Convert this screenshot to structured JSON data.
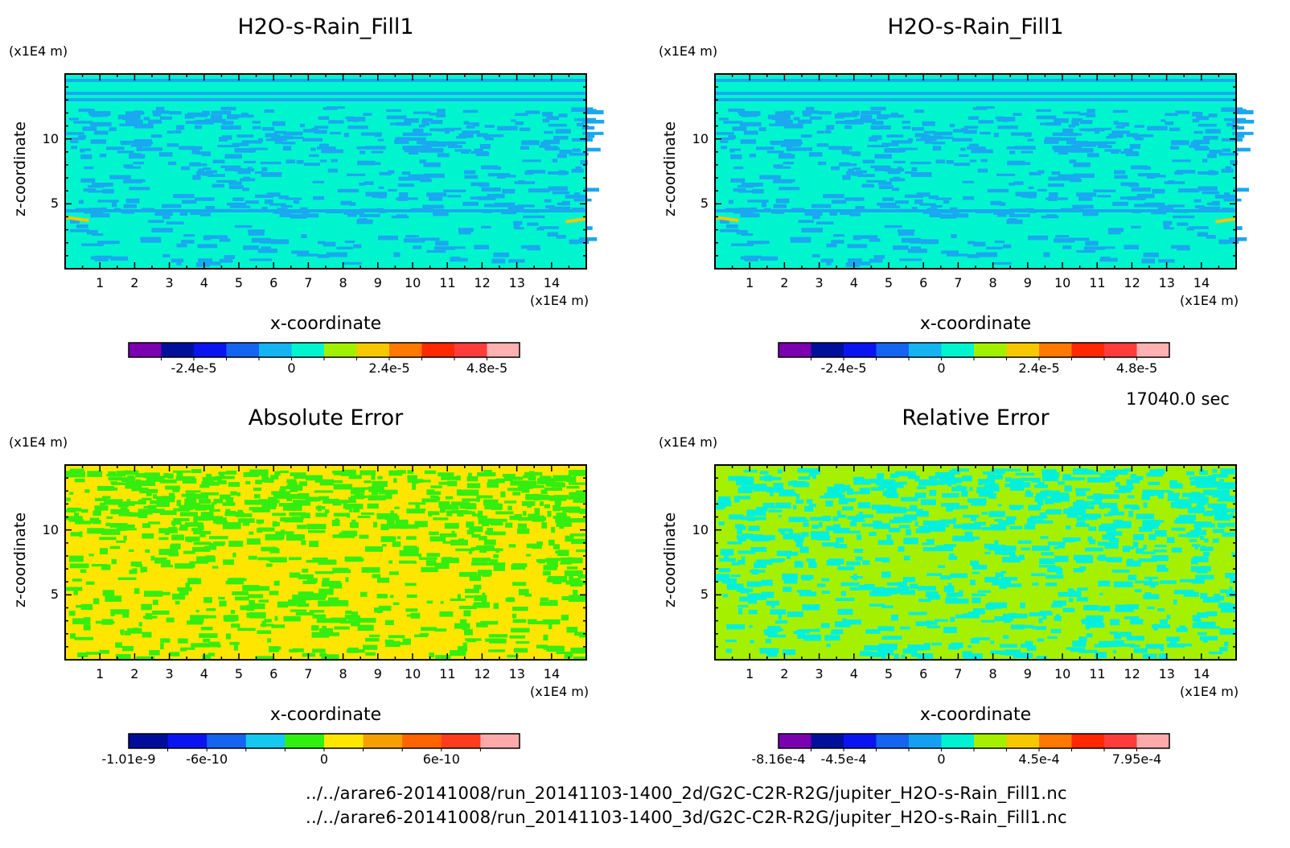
{
  "footer": {
    "path_2d": "../../arare6-20141008/run_20141103-1400_2d/G2C-C2R-R2G/jupiter_H2O-s-Rain_Fill1.nc",
    "path_3d": "../../arare6-20141008/run_20141103-1400_3d/G2C-C2R-R2G/jupiter_H2O-s-Rain_Fill1.nc"
  },
  "time_label": "17040.0 sec",
  "chart_data": [
    {
      "type": "heatmap",
      "title": "H2O-s-Rain_Fill1",
      "xlabel": "x-coordinate",
      "ylabel": "z-coordinate",
      "x_unit": "(x1E4 m)",
      "y_unit": "(x1E4 m)",
      "xlim": [
        0,
        15
      ],
      "ylim": [
        0,
        15
      ],
      "x_ticks": [
        "1",
        "2",
        "3",
        "4",
        "5",
        "6",
        "7",
        "8",
        "9",
        "10",
        "11",
        "12",
        "13",
        "14"
      ],
      "y_ticks": [
        "5",
        "10"
      ],
      "background_color": "#00f5cf",
      "pattern_color": "#1aa8f0",
      "colorbar": {
        "colors": [
          "#7a00b0",
          "#00109a",
          "#0a14f0",
          "#1464f0",
          "#14b4f0",
          "#00f5cf",
          "#a0f000",
          "#f5c800",
          "#ff7800",
          "#ff2800",
          "#ff3c3c",
          "#ffb0b0"
        ],
        "tick_labels": [
          "-2.4e-5",
          "0",
          "2.4e-5",
          "4.8e-5"
        ]
      }
    },
    {
      "type": "heatmap",
      "title": "H2O-s-Rain_Fill1",
      "xlabel": "x-coordinate",
      "ylabel": "z-coordinate",
      "x_unit": "(x1E4 m)",
      "y_unit": "(x1E4 m)",
      "xlim": [
        0,
        15
      ],
      "ylim": [
        0,
        15
      ],
      "x_ticks": [
        "1",
        "2",
        "3",
        "4",
        "5",
        "6",
        "7",
        "8",
        "9",
        "10",
        "11",
        "12",
        "13",
        "14"
      ],
      "y_ticks": [
        "5",
        "10"
      ],
      "background_color": "#00f5cf",
      "pattern_color": "#1aa8f0",
      "colorbar": {
        "colors": [
          "#7a00b0",
          "#00109a",
          "#0a14f0",
          "#1464f0",
          "#14b4f0",
          "#00f5cf",
          "#a0f000",
          "#f5c800",
          "#ff7800",
          "#ff2800",
          "#ff3c3c",
          "#ffb0b0"
        ],
        "tick_labels": [
          "-2.4e-5",
          "0",
          "2.4e-5",
          "4.8e-5"
        ]
      }
    },
    {
      "type": "heatmap",
      "title": "Absolute Error",
      "xlabel": "x-coordinate",
      "ylabel": "z-coordinate",
      "x_unit": "(x1E4 m)",
      "y_unit": "(x1E4 m)",
      "xlim": [
        0,
        15
      ],
      "ylim": [
        0,
        15
      ],
      "x_ticks": [
        "1",
        "2",
        "3",
        "4",
        "5",
        "6",
        "7",
        "8",
        "9",
        "10",
        "11",
        "12",
        "13",
        "14"
      ],
      "y_ticks": [
        "5",
        "10"
      ],
      "background_color": "#ffe600",
      "pattern_color": "#33ee10",
      "colorbar": {
        "colors": [
          "#000c9a",
          "#0a14f0",
          "#1464f0",
          "#14c8f0",
          "#30f010",
          "#ffe600",
          "#f5a000",
          "#ff6400",
          "#ff3c1e",
          "#ffaaaa"
        ],
        "tick_labels": [
          "-1.01e-9",
          "-6e-10",
          "0",
          "6e-10"
        ]
      }
    },
    {
      "type": "heatmap",
      "title": "Relative Error",
      "xlabel": "x-coordinate",
      "ylabel": "z-coordinate",
      "x_unit": "(x1E4 m)",
      "y_unit": "(x1E4 m)",
      "xlim": [
        0,
        15
      ],
      "ylim": [
        0,
        15
      ],
      "x_ticks": [
        "1",
        "2",
        "3",
        "4",
        "5",
        "6",
        "7",
        "8",
        "9",
        "10",
        "11",
        "12",
        "13",
        "14"
      ],
      "y_ticks": [
        "5",
        "10"
      ],
      "background_color": "#a4f000",
      "pattern_color": "#00f0dc",
      "colorbar": {
        "colors": [
          "#7a00b0",
          "#00109a",
          "#0a14f0",
          "#1464f0",
          "#14a0f0",
          "#00f0d2",
          "#a4f000",
          "#f5c800",
          "#ff7800",
          "#ff2800",
          "#ff3c3c",
          "#ffaaaa"
        ],
        "tick_labels": [
          "-8.16e-4",
          "-4.5e-4",
          "0",
          "4.5e-4",
          "7.95e-4"
        ]
      }
    }
  ]
}
